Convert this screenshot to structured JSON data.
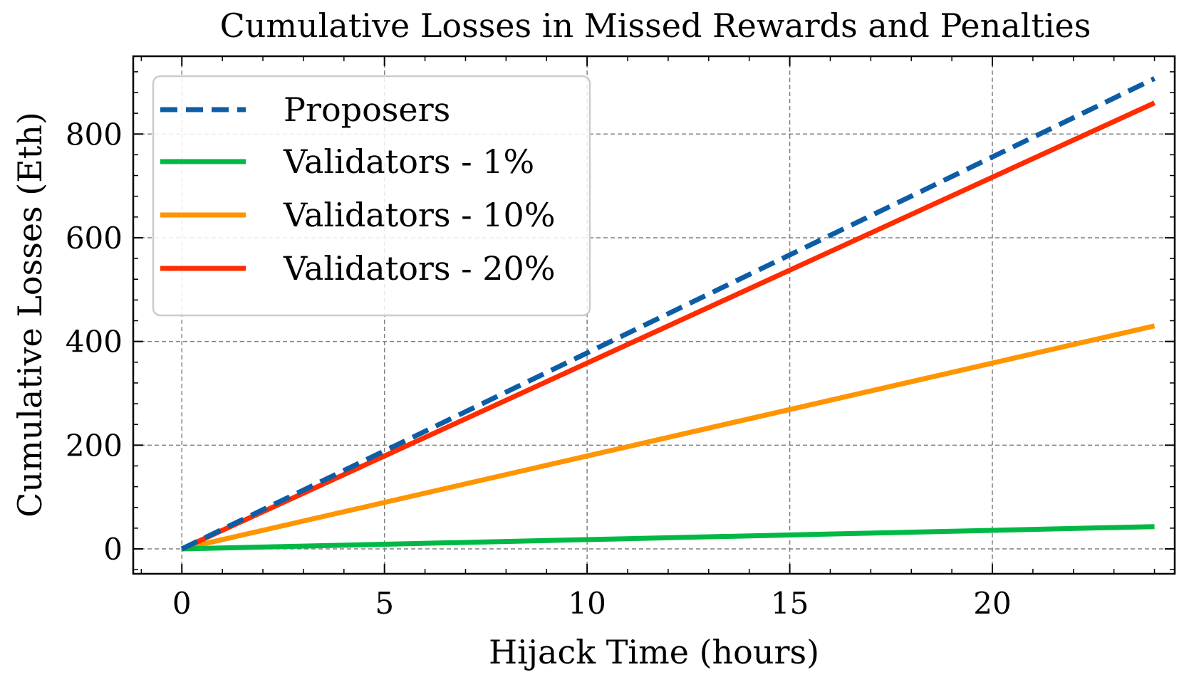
{
  "chart_data": {
    "type": "line",
    "title": "Cumulative Losses in Missed Rewards and Penalties",
    "xlabel": "Hijack Time (hours)",
    "ylabel": "Cumulative Losses (Eth)",
    "xlim": [
      -1.2,
      24.5
    ],
    "ylim": [
      -48,
      950
    ],
    "xticks": [
      0,
      5,
      10,
      15,
      20
    ],
    "yticks": [
      0,
      200,
      400,
      600,
      800
    ],
    "grid": true,
    "legend_position": "top-left",
    "series": [
      {
        "name": "Proposers",
        "x": [
          0,
          24
        ],
        "y": [
          0,
          907
        ],
        "color": "#0C5DA5",
        "style": "dashed"
      },
      {
        "name": "Validators - 1%",
        "x": [
          0,
          24
        ],
        "y": [
          0,
          43
        ],
        "color": "#00B945",
        "style": "solid"
      },
      {
        "name": "Validators - 10%",
        "x": [
          0,
          24
        ],
        "y": [
          0,
          430
        ],
        "color": "#FF9500",
        "style": "solid"
      },
      {
        "name": "Validators - 20%",
        "x": [
          0,
          24
        ],
        "y": [
          0,
          860
        ],
        "color": "#FF2C00",
        "style": "solid"
      }
    ]
  }
}
